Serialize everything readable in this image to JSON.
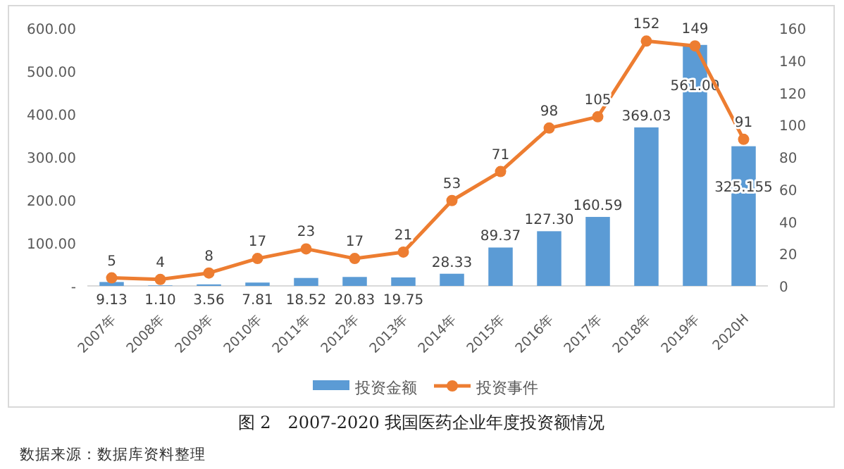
{
  "chart_data": {
    "type": "bar",
    "title": "图 2　2007-2020 我国医药企业年度投资额情况",
    "annotations": [
      "数据来源：数据库资料整理"
    ],
    "categories": [
      "2007年",
      "2008年",
      "2009年",
      "2010年",
      "2011年",
      "2012年",
      "2013年",
      "2014年",
      "2015年",
      "2016年",
      "2017年",
      "2018年",
      "2019年",
      "2020H"
    ],
    "series": [
      {
        "name": "投资金额",
        "color": "#5b9bd5",
        "values": [
          9.13,
          1.1,
          3.56,
          7.81,
          18.52,
          20.83,
          19.75,
          28.33,
          89.37,
          127.3,
          160.59,
          369.03,
          561.0,
          325.155
        ],
        "value_labels": [
          "9.13",
          "1.10",
          "3.56",
          "7.81",
          "18.52",
          "20.83",
          "19.75",
          "28.33",
          "89.37",
          "127.30",
          "160.59",
          "369.03",
          "561.00",
          "325.155"
        ]
      },
      {
        "name": "投资事件",
        "type": "line",
        "axis": "y2",
        "color": "#ed7d31",
        "values": [
          5,
          4,
          8,
          17,
          23,
          17,
          21,
          53,
          71,
          98,
          105,
          152,
          149,
          91
        ]
      }
    ],
    "ylim": [
      0,
      600
    ],
    "yticks": [
      {
        "value": 0,
        "label": "-"
      },
      {
        "value": 100,
        "label": "100.00"
      },
      {
        "value": 200,
        "label": "200.00"
      },
      {
        "value": 300,
        "label": "300.00"
      },
      {
        "value": 400,
        "label": "400.00"
      },
      {
        "value": 500,
        "label": "500.00"
      },
      {
        "value": 600,
        "label": "600.00"
      }
    ],
    "y2lim": [
      0,
      160
    ],
    "y2ticks": [
      0,
      20,
      40,
      60,
      80,
      100,
      120,
      140,
      160
    ],
    "data_labels": true,
    "marker": "circle",
    "line_style": "solid",
    "legend": "bottom",
    "grid": false
  }
}
